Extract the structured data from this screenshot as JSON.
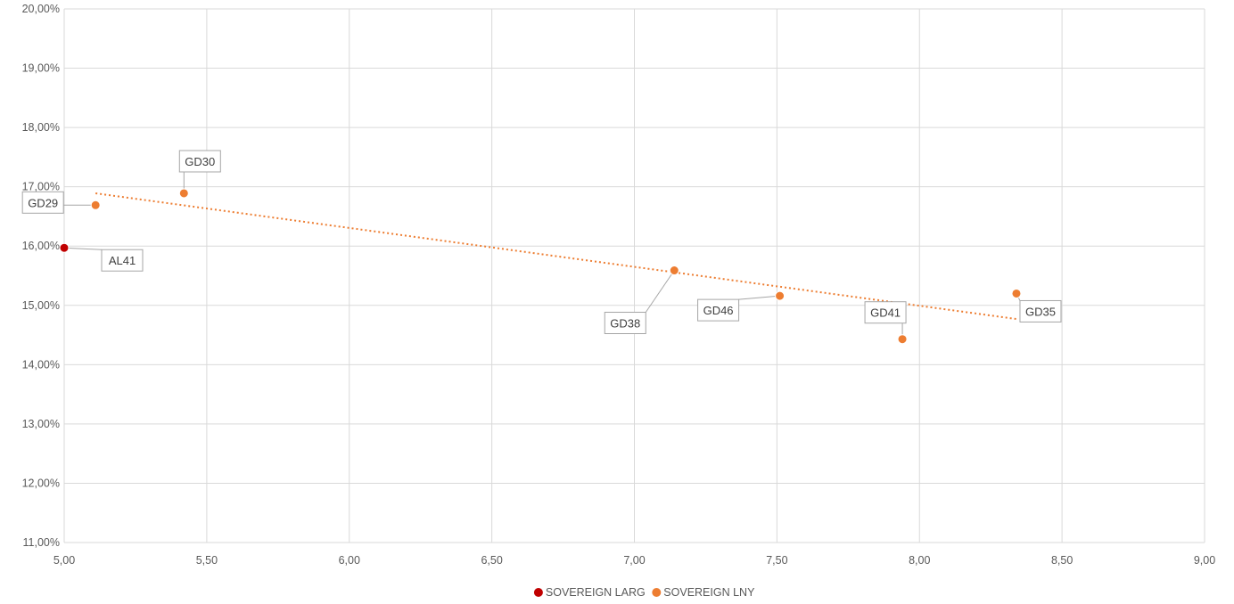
{
  "chart_data": {
    "type": "scatter",
    "title": "",
    "xlabel": "",
    "ylabel": "",
    "xlim": [
      5.0,
      9.0
    ],
    "ylim": [
      11.0,
      20.0
    ],
    "x_ticks": [
      "5,00",
      "5,50",
      "6,00",
      "6,50",
      "7,00",
      "7,50",
      "8,00",
      "8,50",
      "9,00"
    ],
    "y_ticks": [
      "11,00%",
      "12,00%",
      "13,00%",
      "14,00%",
      "15,00%",
      "16,00%",
      "17,00%",
      "18,00%",
      "19,00%",
      "20,00%"
    ],
    "grid": true,
    "legend_position": "bottom",
    "series": [
      {
        "name": "SOVEREIGN LARG",
        "color": "#C00000",
        "points": [
          {
            "label": "AL41",
            "x": 5.0,
            "y": 15.97
          }
        ]
      },
      {
        "name": "SOVEREIGN LNY",
        "color": "#ED7D31",
        "points": [
          {
            "label": "GD29",
            "x": 5.11,
            "y": 16.69
          },
          {
            "label": "GD30",
            "x": 5.42,
            "y": 16.89
          },
          {
            "label": "GD38",
            "x": 7.14,
            "y": 15.59
          },
          {
            "label": "GD46",
            "x": 7.51,
            "y": 15.16
          },
          {
            "label": "GD41",
            "x": 7.94,
            "y": 14.43
          },
          {
            "label": "GD35",
            "x": 8.34,
            "y": 15.2
          }
        ],
        "trendline": {
          "type": "linear",
          "x_start": 5.11,
          "y_start": 16.89,
          "x_end": 8.34,
          "y_end": 14.77,
          "style": "dotted"
        }
      }
    ]
  }
}
